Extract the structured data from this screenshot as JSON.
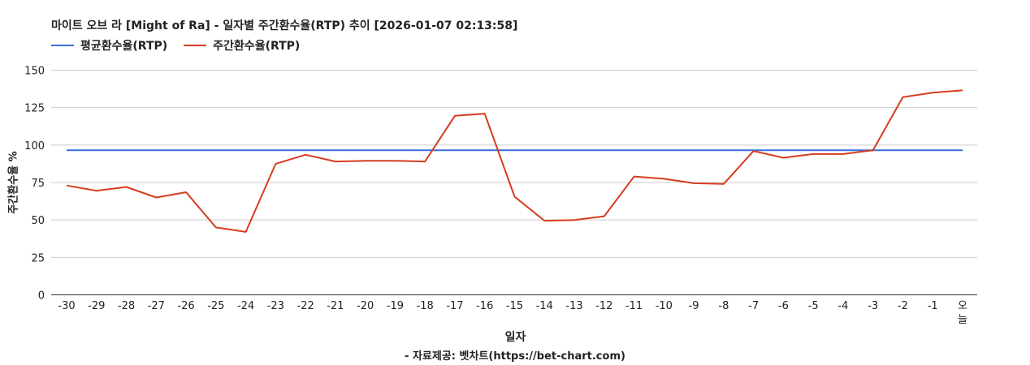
{
  "chart_data": {
    "type": "line",
    "title": "마이트 오브 라 [Might of Ra] - 일자별 주간환수율(RTP) 추이 [2026-01-07 02:13:58]",
    "xlabel": "일자",
    "ylabel": "주간환수율 %",
    "source": "- 자료제공: 벳차트(https://bet-chart.com)",
    "categories": [
      "-30",
      "-29",
      "-28",
      "-27",
      "-26",
      "-25",
      "-24",
      "-23",
      "-22",
      "-21",
      "-20",
      "-19",
      "-18",
      "-17",
      "-16",
      "-15",
      "-14",
      "-13",
      "-12",
      "-11",
      "-10",
      "-9",
      "-8",
      "-7",
      "-6",
      "-5",
      "-4",
      "-3",
      "-2",
      "-1",
      "오늘"
    ],
    "ylim": [
      0,
      150
    ],
    "yticks": [
      0,
      25,
      50,
      75,
      100,
      125,
      150
    ],
    "grid": true,
    "legend_position": "top-left",
    "series": [
      {
        "name": "평균환수율(RTP)",
        "color": "#3a6fd8",
        "values": [
          96.5,
          96.5,
          96.5,
          96.5,
          96.5,
          96.5,
          96.5,
          96.5,
          96.5,
          96.5,
          96.5,
          96.5,
          96.5,
          96.5,
          96.5,
          96.5,
          96.5,
          96.5,
          96.5,
          96.5,
          96.5,
          96.5,
          96.5,
          96.5,
          96.5,
          96.5,
          96.5,
          96.5,
          96.5,
          96.5,
          96.5
        ]
      },
      {
        "name": "주간환수율(RTP)",
        "color": "#d63c1e",
        "values": [
          73,
          69.5,
          72,
          65,
          68.5,
          45,
          42,
          87.5,
          93.5,
          89,
          89.5,
          89.5,
          89,
          119.5,
          121,
          65.5,
          49.5,
          50,
          52.5,
          79,
          77.5,
          74.5,
          74,
          96,
          91.5,
          94,
          94,
          96.5,
          132,
          135,
          136.5
        ]
      }
    ]
  }
}
